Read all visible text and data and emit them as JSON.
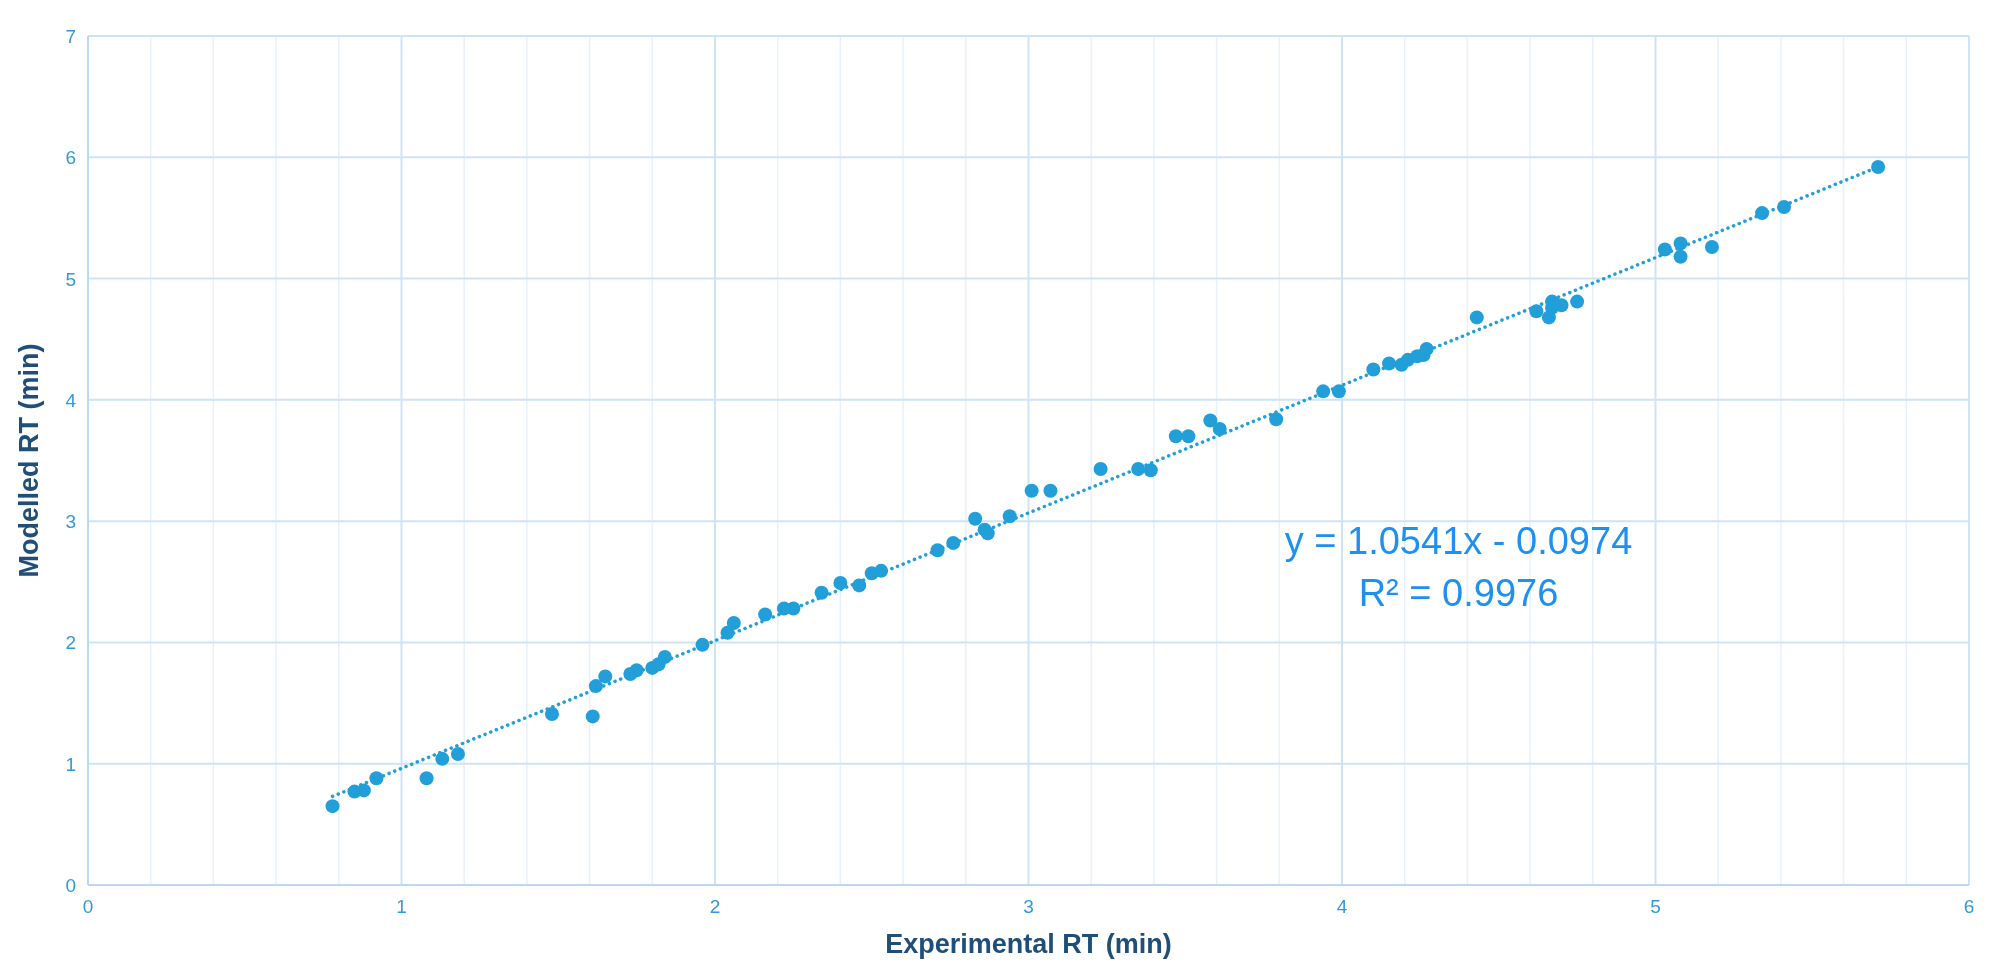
{
  "chart_data": {
    "type": "scatter",
    "xlabel": "Experimental RT (min)",
    "ylabel": "Modelled RT (min)",
    "xlim": [
      0,
      6
    ],
    "ylim": [
      0,
      7
    ],
    "xticks": [
      0,
      1,
      2,
      3,
      4,
      5,
      6
    ],
    "yticks": [
      0,
      1,
      2,
      3,
      4,
      5,
      6,
      7
    ],
    "grid": true,
    "marker": "circle",
    "series": [
      {
        "type": "scatter",
        "color": "#229fd9",
        "x": [
          0.78,
          0.85,
          0.88,
          0.92,
          1.08,
          1.13,
          1.18,
          1.48,
          1.61,
          1.62,
          1.65,
          1.73,
          1.75,
          1.8,
          1.82,
          1.84,
          1.96,
          2.04,
          2.06,
          2.16,
          2.22,
          2.25,
          2.34,
          2.4,
          2.46,
          2.5,
          2.53,
          2.71,
          2.76,
          2.83,
          2.86,
          2.87,
          2.94,
          3.01,
          3.07,
          3.23,
          3.35,
          3.39,
          3.47,
          3.51,
          3.58,
          3.61,
          3.79,
          3.94,
          3.99,
          4.1,
          4.15,
          4.19,
          4.21,
          4.24,
          4.26,
          4.27,
          4.43,
          4.62,
          4.66,
          4.67,
          4.67,
          4.7,
          4.75,
          5.03,
          5.08,
          5.08,
          5.18,
          5.34,
          5.41,
          5.71
        ],
        "values": [
          0.65,
          0.77,
          0.78,
          0.88,
          0.88,
          1.04,
          1.08,
          1.41,
          1.39,
          1.64,
          1.72,
          1.74,
          1.77,
          1.79,
          1.82,
          1.88,
          1.98,
          2.08,
          2.16,
          2.23,
          2.28,
          2.28,
          2.41,
          2.49,
          2.47,
          2.57,
          2.59,
          2.76,
          2.82,
          3.02,
          2.93,
          2.9,
          3.04,
          3.25,
          3.25,
          3.43,
          3.43,
          3.42,
          3.7,
          3.7,
          3.83,
          3.76,
          3.84,
          4.07,
          4.07,
          4.25,
          4.3,
          4.29,
          4.33,
          4.36,
          4.37,
          4.42,
          4.68,
          4.73,
          4.68,
          4.76,
          4.81,
          4.78,
          4.81,
          5.24,
          5.29,
          5.18,
          5.26,
          5.54,
          5.59,
          5.92
        ]
      },
      {
        "type": "line",
        "line_style": "dotted",
        "marker": "none",
        "color": "#229fd9",
        "x": [
          0.78,
          5.71
        ],
        "values": [
          0.73,
          5.92
        ]
      }
    ],
    "annotations": [
      "y = 1.0541x - 0.0974",
      "R² = 0.9976"
    ]
  }
}
